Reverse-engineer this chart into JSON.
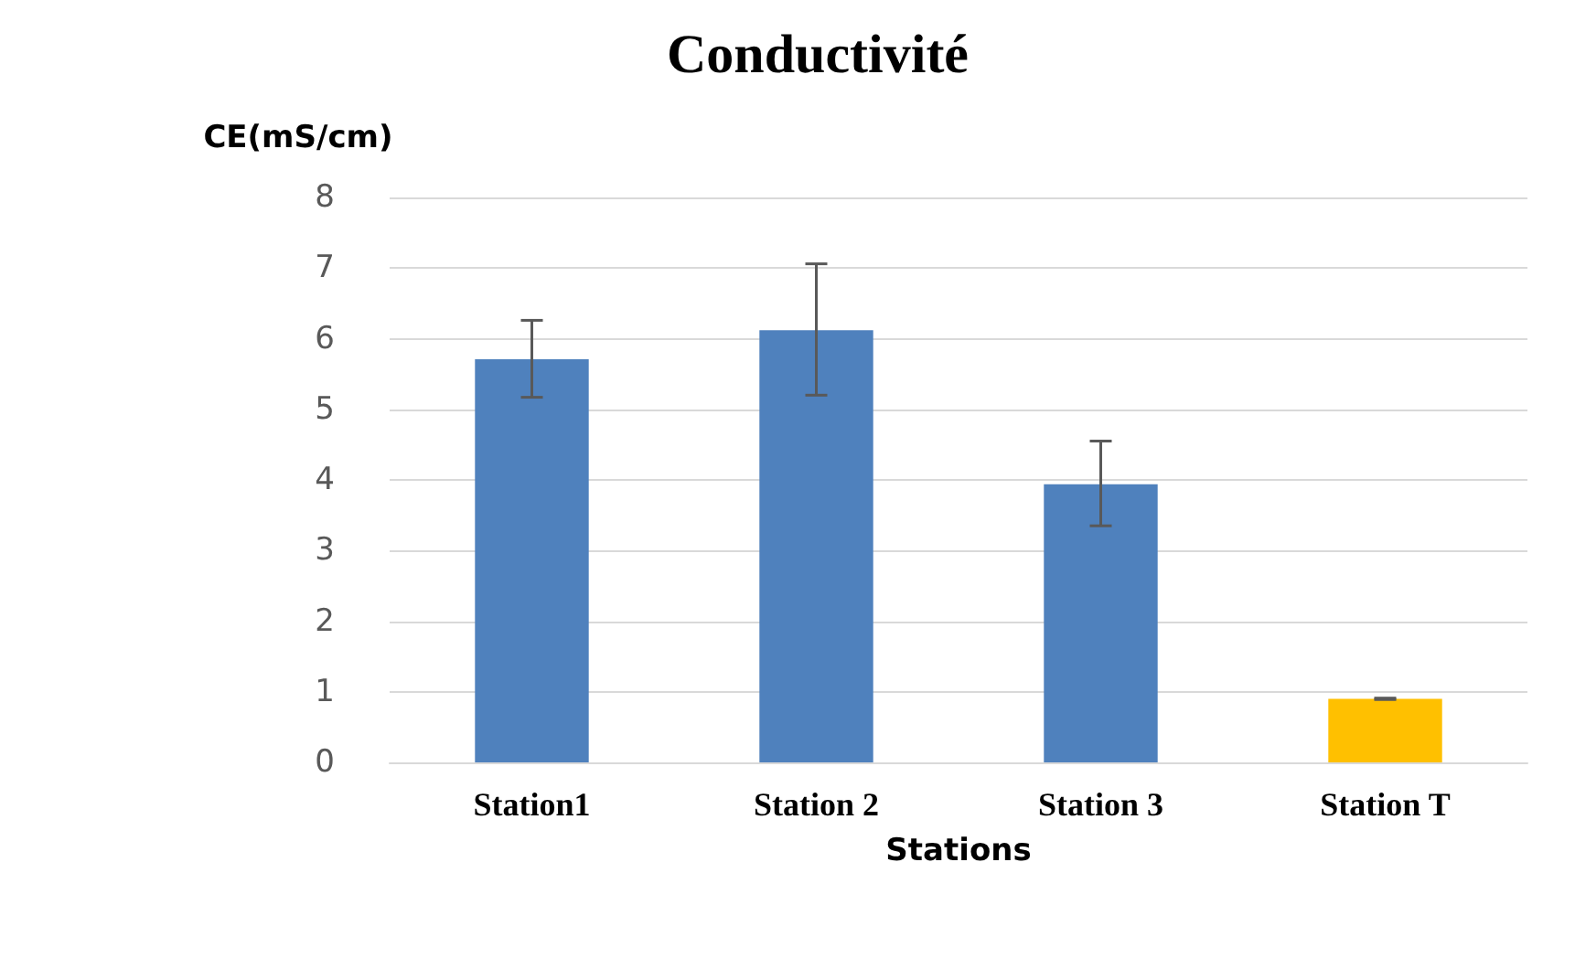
{
  "chart_data": {
    "type": "bar",
    "title": "Conductivité",
    "xlabel": "Stations",
    "ylabel": "CE(mS/cm)",
    "categories": [
      "Station1",
      "Station 2",
      "Station 3",
      "Station T"
    ],
    "values": [
      5.71,
      6.12,
      3.94,
      0.9
    ],
    "colors": [
      "#4f81bd",
      "#4f81bd",
      "#4f81bd",
      "#ffc000"
    ],
    "errors": [
      [
        5.17,
        6.26
      ],
      [
        5.2,
        7.06
      ],
      [
        3.35,
        4.55
      ],
      [
        0.89,
        0.91
      ]
    ],
    "ylim": [
      0,
      8
    ],
    "yticks": [
      0,
      1,
      2,
      3,
      4,
      5,
      6,
      7,
      8
    ],
    "grid": "y"
  }
}
